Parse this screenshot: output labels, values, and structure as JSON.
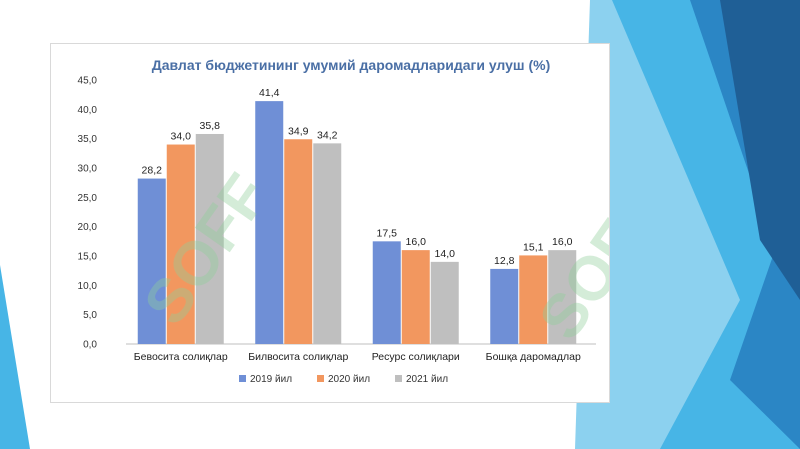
{
  "watermark": {
    "text": "SOFF",
    "color": "#8fcf9a"
  },
  "colors": {
    "background_dark": "#1f5f96",
    "background_mid": "#2b86c5",
    "background_light": "#47b5e6",
    "background_pale": "#8cd1ef"
  },
  "chart_data": {
    "type": "bar",
    "title": "Давлат бюджетининг умумий даромадларидаги улуш (%)",
    "categories": [
      "Бевосита солиқлар",
      "Билвосита солиқлар",
      "Ресурс солиқлари",
      "Бошқа даромадлар"
    ],
    "series": [
      {
        "name": "2019 йил",
        "values": [
          28.2,
          41.4,
          17.5,
          12.8
        ],
        "labels": [
          "28,2",
          "41,4",
          "17,5",
          "12,8"
        ],
        "color": "#6f8fd6"
      },
      {
        "name": "2020 йил",
        "values": [
          34.0,
          34.9,
          16.0,
          15.1
        ],
        "labels": [
          "34,0",
          "34,9",
          "16,0",
          "15,1"
        ],
        "color": "#f2975f"
      },
      {
        "name": "2021 йил",
        "values": [
          35.8,
          34.2,
          14.0,
          16.0
        ],
        "labels": [
          "35,8",
          "34,2",
          "14,0",
          "16,0"
        ],
        "color": "#bfbfbf"
      }
    ],
    "ylim": [
      0,
      45
    ],
    "yticks": [
      "0,0",
      "5,0",
      "10,0",
      "15,0",
      "20,0",
      "25,0",
      "30,0",
      "35,0",
      "40,0",
      "45,0"
    ],
    "grid": false,
    "legend_position": "bottom"
  }
}
